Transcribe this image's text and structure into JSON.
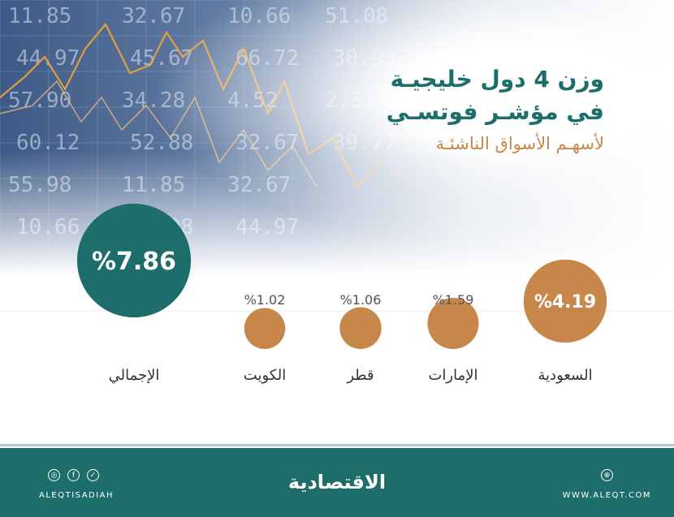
{
  "title": {
    "line1": "وزن 4 دول خليجيـة",
    "line2": "في مؤشـر فوتسـي",
    "line3": "لأسهـم الأسواق الناشئـة"
  },
  "colors": {
    "teal": "#1d6e6b",
    "orange": "#c8874a",
    "label": "#555555"
  },
  "chart_data": {
    "type": "bubble",
    "unit": "%",
    "categories": [
      "السعودية",
      "الإمارات",
      "قطر",
      "الكويت",
      "الإجمالي"
    ],
    "values": [
      4.19,
      1.59,
      1.06,
      1.02,
      7.86
    ],
    "value_labels": [
      "%4.19",
      "%1.59",
      "%1.06",
      "%1.02",
      "%7.86"
    ],
    "colors": [
      "#c8874a",
      "#c8874a",
      "#c8874a",
      "#c8874a",
      "#1d6e6b"
    ]
  },
  "background": {
    "ticker_numbers": [
      "11.85",
      "32.67",
      "10.66",
      "51.08",
      "44.97",
      "45.67",
      "66.72",
      "30.93",
      "57.90",
      "34.28",
      "4.52",
      "2.31",
      "60.12",
      "52.88",
      "32.67",
      "39.77",
      "55.98"
    ]
  },
  "footer": {
    "brand": "الاقتصادية",
    "left_handle": "ALEQTISADIAH",
    "right_site": "WWW.ALEQT.COM",
    "social_icons": [
      "instagram-icon",
      "facebook-icon",
      "twitter-icon"
    ],
    "site_icon": "globe-icon"
  }
}
